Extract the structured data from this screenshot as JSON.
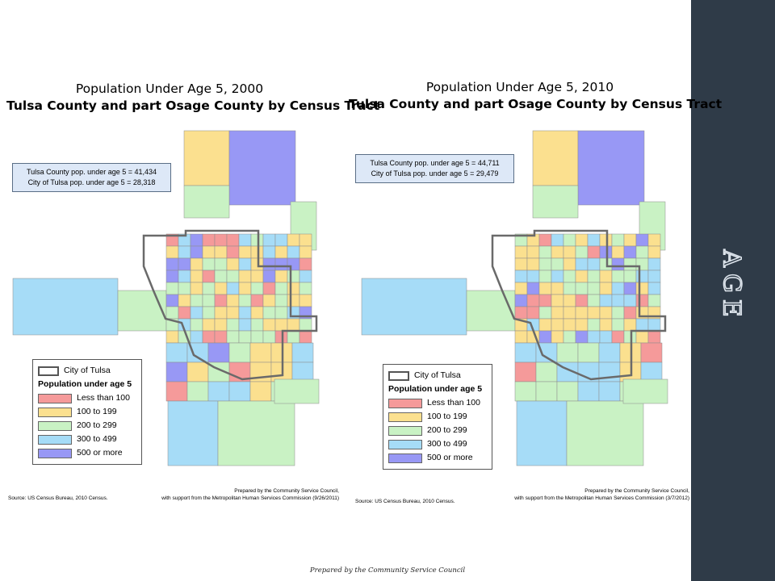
{
  "side_title": "Age",
  "footer": "Prepared by the Community Service Council",
  "colors": {
    "under_100": "#f59a9a",
    "c100_199": "#fbe08f",
    "c200_299": "#c9f2c4",
    "c300_499": "#a6dcf7",
    "c500_plus": "#9898f5",
    "city_outline": "#6a6a6a",
    "side_band": "#2f3b48"
  },
  "legend": {
    "city_label": "City of Tulsa",
    "heading": "Population under age 5",
    "classes": [
      {
        "label": "Less than 100",
        "color_key": "under_100"
      },
      {
        "label": "100 to 199",
        "color_key": "c100_199"
      },
      {
        "label": "200 to 299",
        "color_key": "c200_299"
      },
      {
        "label": "300 to 499",
        "color_key": "c300_499"
      },
      {
        "label": "500 or more",
        "color_key": "c500_plus"
      }
    ]
  },
  "maps": [
    {
      "title_line1": "Population Under Age 5, 2000",
      "title_line2": "Tulsa County and part Osage County by Census Tract",
      "stat_county": "Tulsa County pop. under age 5 = 41,434",
      "stat_city": "City of Tulsa pop. under age 5 = 28,318",
      "source": "Source:  US Census Bureau, 2010 Census.",
      "credit_line1": "Prepared by the Community Service Council,",
      "credit_line2": "with support from the Metropolitan Human Services Commission (9/26/2011)"
    },
    {
      "title_line1": "Population Under Age 5, 2010",
      "title_line2": "Tulsa County and part Osage County by Census Tract",
      "stat_county": "Tulsa County pop. under age 5 = 44,711",
      "stat_city": "City of Tulsa pop. under age 5 = 29,479",
      "source": "Source:  US Census Bureau, 2010 Census.",
      "credit_line1": "Prepared by the Community Service Council,",
      "credit_line2": "with support from the Metropolitan Human Services Commission (3/7/2012)"
    }
  ]
}
